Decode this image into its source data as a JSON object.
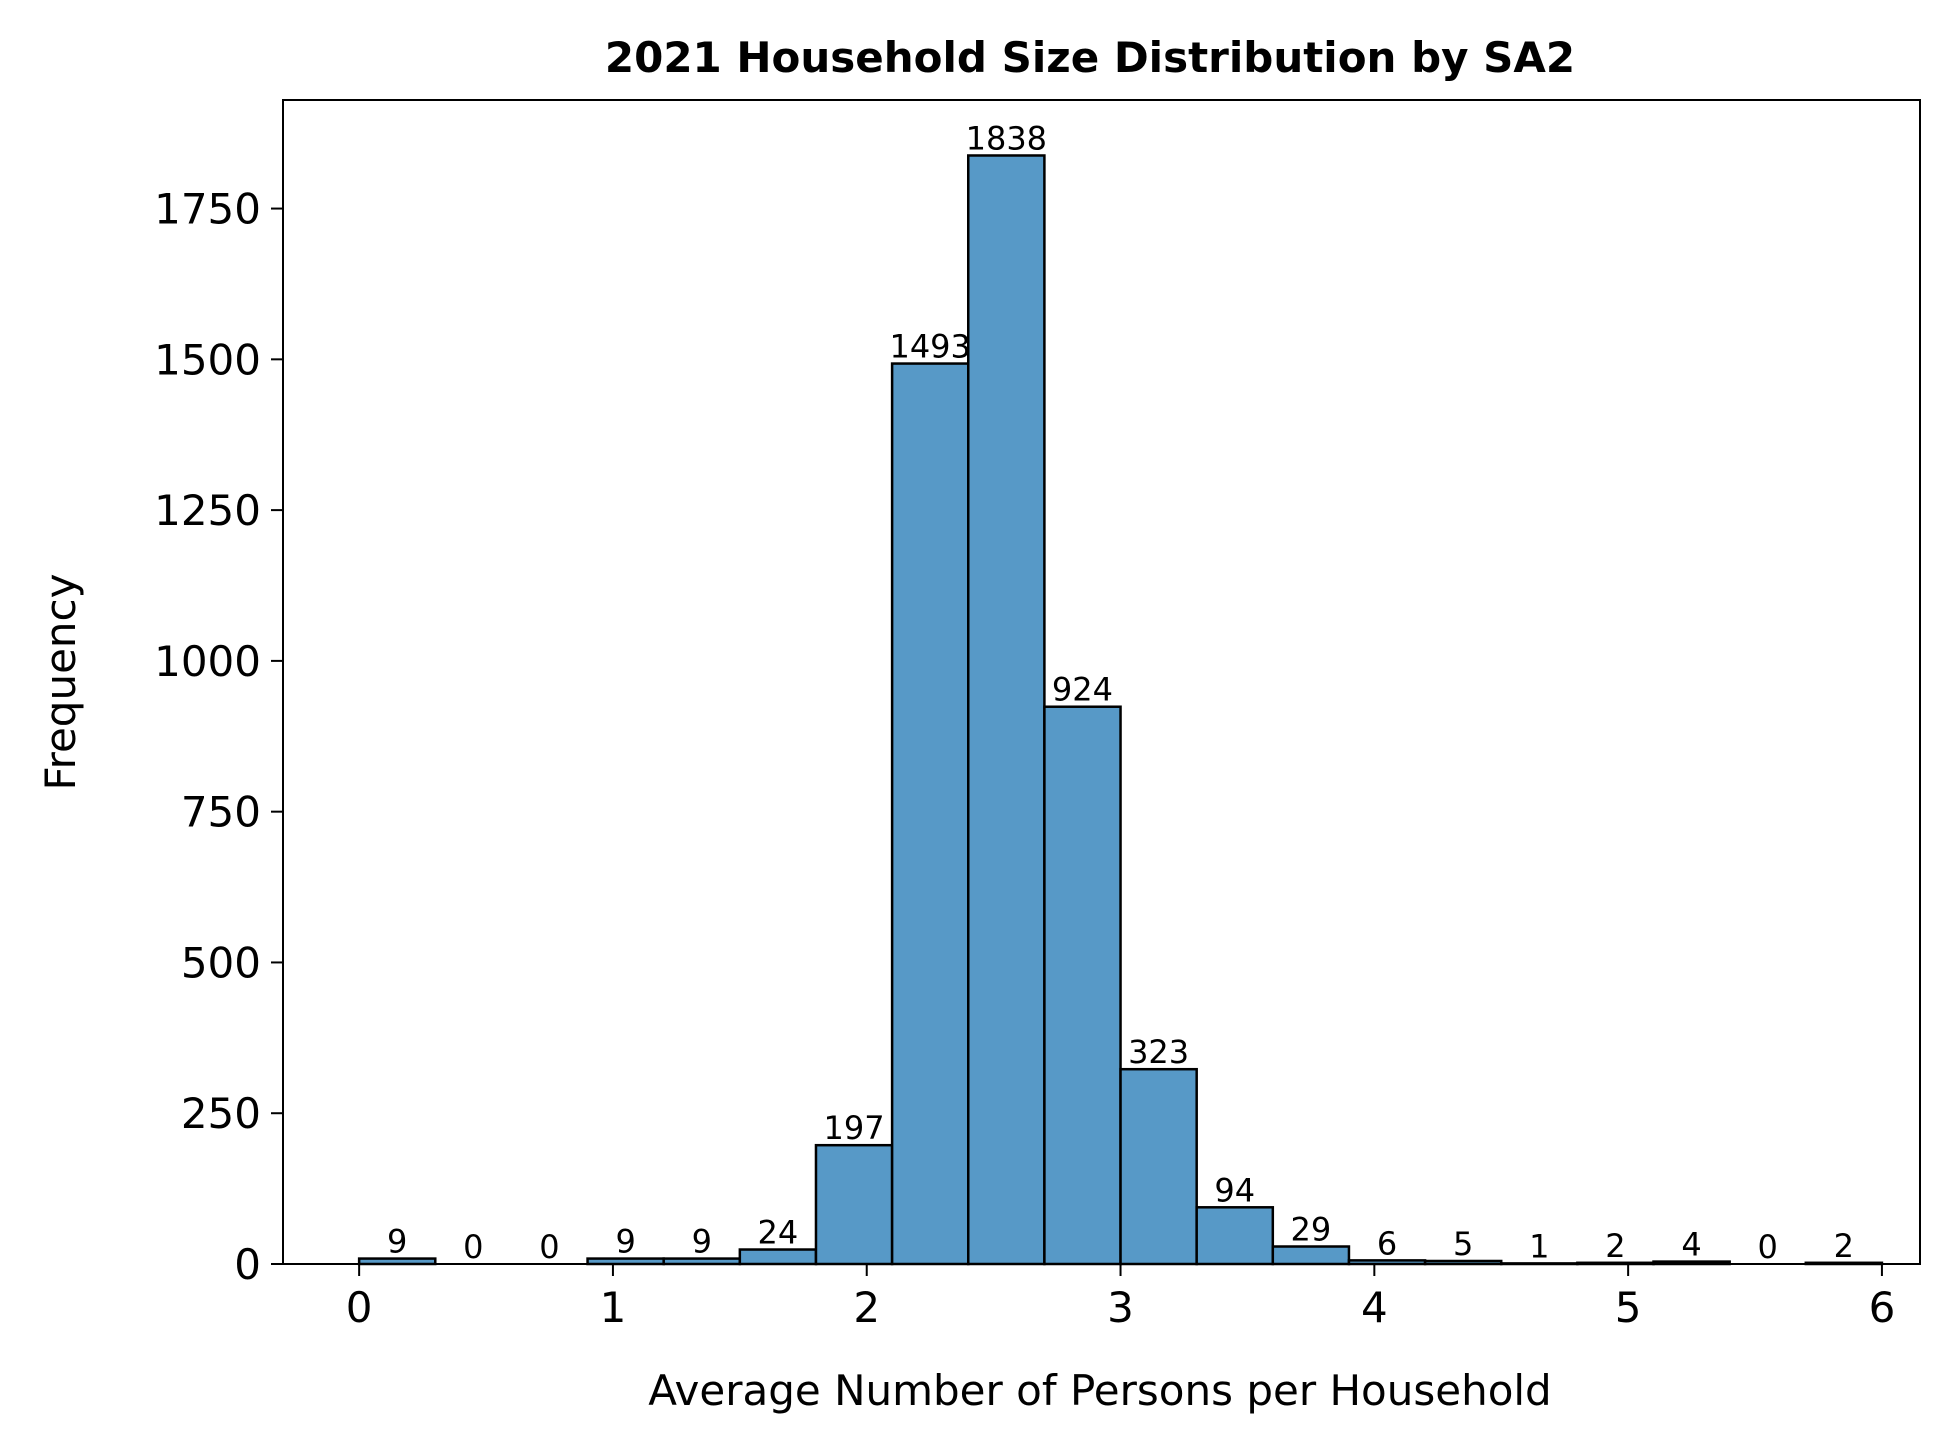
{
  "chart_data": {
    "type": "bar",
    "title": "2021 Household Size Distribution by SA2",
    "xlabel": "Average Number of Persons per Household",
    "ylabel": "Frequency",
    "bin_start": 0,
    "bin_width": 0.3,
    "values": [
      9,
      0,
      0,
      9,
      9,
      24,
      197,
      1493,
      1838,
      924,
      323,
      94,
      29,
      6,
      5,
      1,
      2,
      4,
      0,
      2
    ],
    "xlim": [
      -0.3,
      6.15
    ],
    "ylim": [
      0,
      1930
    ],
    "xticks": [
      0,
      1,
      2,
      3,
      4,
      5,
      6
    ],
    "xtick_labels": [
      "0",
      "1",
      "2",
      "3",
      "4",
      "5",
      "6"
    ],
    "yticks": [
      0,
      250,
      500,
      750,
      1000,
      1250,
      1500,
      1750
    ],
    "ytick_labels": [
      "0",
      "250",
      "500",
      "750",
      "1000",
      "1250",
      "1500",
      "1750"
    ],
    "colors": {
      "bar_fill": "#5799c7",
      "bar_edge": "#000000"
    },
    "grid": false,
    "legend": "none"
  }
}
